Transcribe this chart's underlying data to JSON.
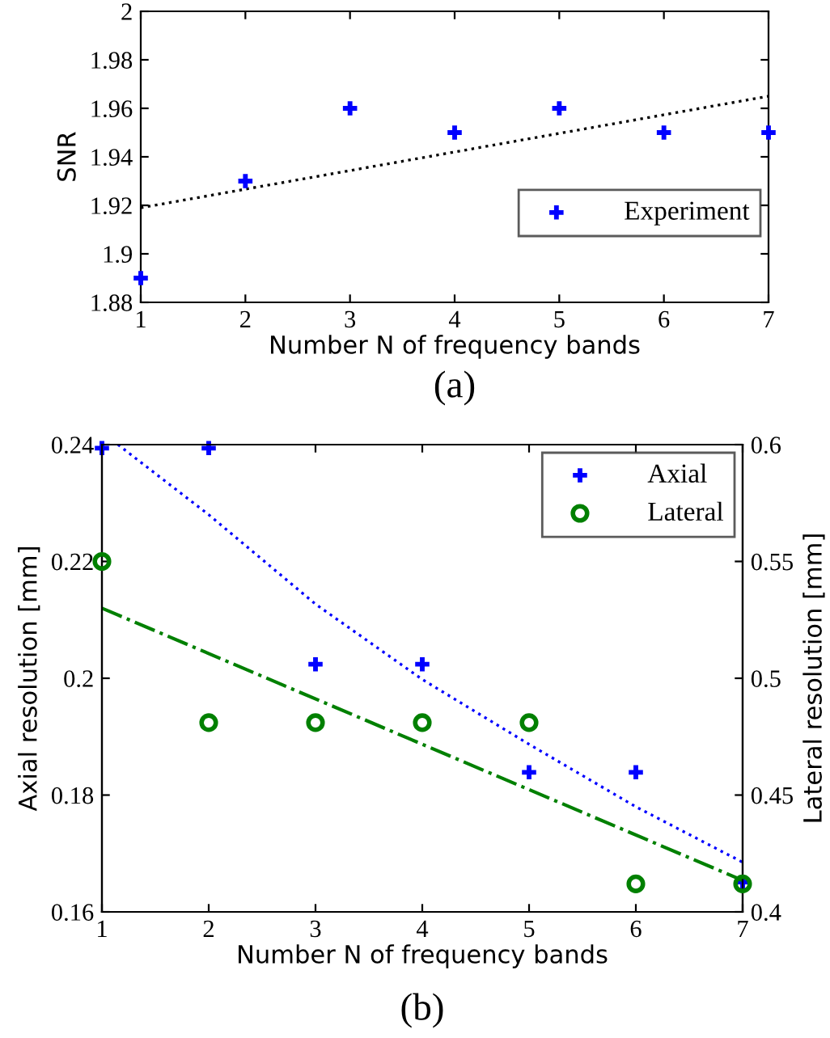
{
  "chart_data": [
    {
      "type": "scatter",
      "xlabel": "Number N of frequency bands",
      "ylabel": "SNR",
      "annotations": [
        "(a)"
      ],
      "xlim": [
        1,
        7
      ],
      "xticks": [
        1,
        2,
        3,
        4,
        5,
        6,
        7
      ],
      "ylim": [
        1.88,
        2
      ],
      "yticks": [
        1.88,
        1.9,
        1.92,
        1.94,
        1.96,
        1.98,
        2
      ],
      "grid": false,
      "legend": "bottom right",
      "marker": "cross",
      "series": [
        {
          "name": "Experiment",
          "color": "#0000ff",
          "x": [
            1,
            2,
            3,
            4,
            5,
            6,
            7
          ],
          "values": [
            1.89,
            1.93,
            1.96,
            1.95,
            1.96,
            1.95,
            1.95
          ]
        },
        {
          "type": "line",
          "color": "#000000",
          "line_style": "dotted",
          "marker": "none",
          "x": [
            1,
            4,
            7
          ],
          "values": [
            1.919,
            1.942,
            1.965
          ]
        }
      ]
    },
    {
      "type": "scatter",
      "xlabel": "Number N of frequency bands",
      "ylabel": "Axial resolution [mm]",
      "y2label": "Lateral resolution [mm]",
      "annotations": [
        "(b)"
      ],
      "xlim": [
        1,
        7
      ],
      "xticks": [
        1,
        2,
        3,
        4,
        5,
        6,
        7
      ],
      "ylim": [
        0.16,
        0.24
      ],
      "yticks": [
        0.16,
        0.18,
        0.2,
        0.22,
        0.24
      ],
      "y2lim": [
        0.4,
        0.6
      ],
      "y2ticks": [
        0.4,
        0.45,
        0.5,
        0.55,
        0.6
      ],
      "grid": false,
      "legend": "top right",
      "series": [
        {
          "name": "Axial",
          "color": "#0000ff",
          "marker": "cross",
          "x": [
            1,
            2,
            3,
            4,
            5,
            6,
            7
          ],
          "values": [
            0.2394,
            0.2394,
            0.2024,
            0.2024,
            0.1839,
            0.1839,
            0.1651
          ]
        },
        {
          "name": "Lateral",
          "color": "#008000",
          "marker": "circle",
          "axis": "y2",
          "x": [
            1,
            2,
            3,
            4,
            5,
            6,
            7
          ],
          "values": [
            0.55,
            0.481,
            0.481,
            0.481,
            0.481,
            0.412,
            0.412
          ]
        },
        {
          "type": "line",
          "color": "#0000ff",
          "line_style": "dotted",
          "marker": "none",
          "x": [
            1.15,
            2,
            3,
            4,
            5,
            6,
            7
          ],
          "values": [
            0.24,
            0.228,
            0.2127,
            0.1998,
            0.1887,
            0.178,
            0.1685
          ]
        },
        {
          "type": "line",
          "color": "#008000",
          "line_style": "dashdot",
          "marker": "none",
          "axis": "y2",
          "x": [
            1,
            7
          ],
          "values": [
            0.53,
            0.4135
          ]
        }
      ]
    }
  ]
}
